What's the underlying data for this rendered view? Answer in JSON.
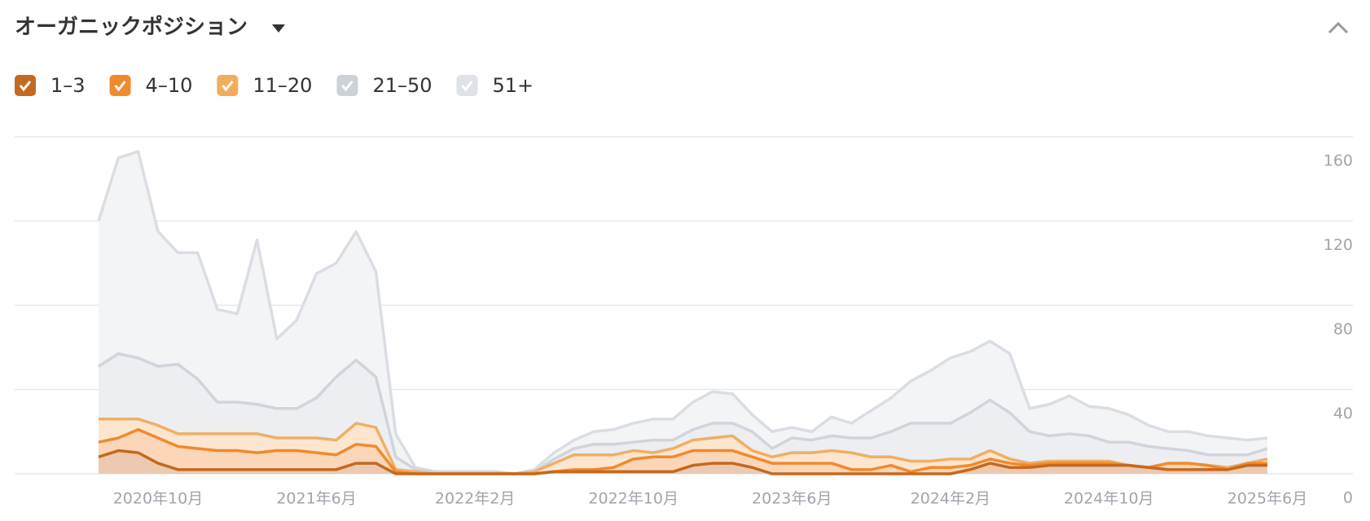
{
  "chart_data": {
    "type": "area",
    "stacked": true,
    "title": "オーガニックポジション",
    "categories": [
      null,
      null,
      null,
      "2020年10月",
      null,
      null,
      null,
      null,
      null,
      null,
      null,
      "2021年6月",
      null,
      null,
      null,
      null,
      null,
      null,
      null,
      "2022年2月",
      null,
      null,
      null,
      null,
      null,
      null,
      null,
      "2022年10月",
      null,
      null,
      null,
      null,
      null,
      null,
      null,
      "2023年6月",
      null,
      null,
      null,
      null,
      null,
      null,
      null,
      "2024年2月",
      null,
      null,
      null,
      null,
      null,
      null,
      null,
      "2024年10月",
      null,
      null,
      null,
      null,
      null,
      null,
      null,
      "2025年6月"
    ],
    "series": [
      {
        "name": "1–3",
        "color": "#c4691f",
        "values": [
          8,
          11,
          10,
          5,
          2,
          2,
          2,
          2,
          2,
          2,
          2,
          2,
          2,
          5,
          5,
          0,
          0,
          0,
          0,
          0,
          0,
          0,
          0,
          1,
          1,
          1,
          1,
          1,
          1,
          1,
          4,
          5,
          5,
          3,
          0,
          0,
          0,
          0,
          0,
          0,
          0,
          0,
          0,
          0,
          2,
          5,
          3,
          3,
          4,
          4,
          4,
          4,
          4,
          3,
          2,
          2,
          2,
          2,
          4,
          4
        ]
      },
      {
        "name": "4–10",
        "color": "#f08a2e",
        "values": [
          7,
          6,
          11,
          12,
          11,
          10,
          9,
          9,
          8,
          9,
          9,
          8,
          7,
          9,
          8,
          1,
          0,
          0,
          0,
          0,
          0,
          0,
          0,
          0,
          1,
          1,
          2,
          6,
          7,
          7,
          7,
          6,
          6,
          5,
          5,
          5,
          5,
          5,
          2,
          2,
          4,
          1,
          3,
          3,
          2,
          2,
          2,
          1,
          1,
          1,
          1,
          1,
          0,
          0,
          3,
          3,
          2,
          0,
          1,
          1
        ]
      },
      {
        "name": "11–20",
        "color": "#f2ad5b",
        "values": [
          11,
          9,
          5,
          6,
          6,
          7,
          8,
          8,
          9,
          6,
          6,
          7,
          7,
          10,
          9,
          1,
          1,
          0,
          0,
          0,
          0,
          0,
          1,
          4,
          7,
          7,
          6,
          4,
          2,
          4,
          5,
          6,
          7,
          3,
          3,
          5,
          5,
          6,
          8,
          6,
          4,
          5,
          3,
          4,
          3,
          4,
          2,
          1,
          1,
          1,
          1,
          1,
          0,
          0,
          0,
          0,
          0,
          1,
          0,
          2
        ]
      },
      {
        "name": "21–50",
        "color": "#cdd1d8",
        "values": [
          25,
          31,
          29,
          28,
          33,
          26,
          15,
          15,
          14,
          14,
          14,
          19,
          30,
          30,
          24,
          6,
          1,
          1,
          1,
          1,
          1,
          0,
          0,
          2,
          3,
          5,
          5,
          4,
          6,
          4,
          5,
          7,
          6,
          9,
          4,
          7,
          6,
          7,
          7,
          9,
          12,
          18,
          18,
          17,
          22,
          24,
          22,
          15,
          12,
          13,
          12,
          9,
          11,
          10,
          7,
          6,
          5,
          6,
          4,
          5
        ]
      },
      {
        "name": "51+",
        "color": "#dfe2e8",
        "values": [
          69,
          93,
          98,
          64,
          53,
          60,
          44,
          42,
          78,
          33,
          42,
          59,
          54,
          61,
          50,
          11,
          1,
          0,
          0,
          0,
          0,
          0,
          1,
          3,
          4,
          6,
          7,
          9,
          10,
          10,
          13,
          15,
          14,
          8,
          8,
          5,
          4,
          9,
          7,
          13,
          16,
          20,
          25,
          31,
          29,
          28,
          28,
          11,
          15,
          18,
          14,
          16,
          13,
          10,
          8,
          9,
          9,
          8,
          7,
          5
        ]
      }
    ],
    "ylim": [
      0,
      160
    ],
    "yticks": [
      0,
      40,
      80,
      120,
      160
    ],
    "grid": true
  }
}
